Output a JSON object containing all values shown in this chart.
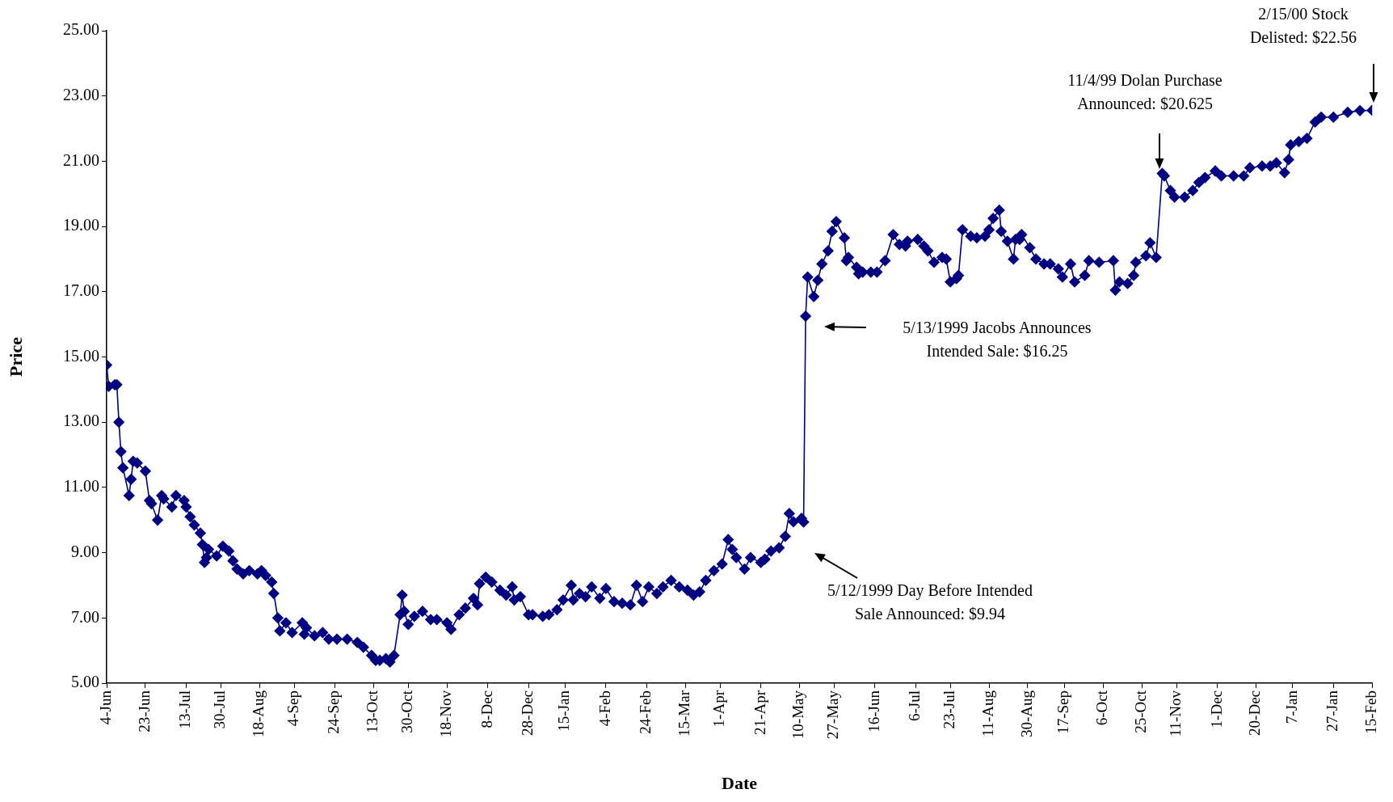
{
  "chart_data": {
    "type": "line",
    "xlabel": "Date",
    "ylabel": "Price",
    "marker": "diamond",
    "xlim": [
      "1998-06-04",
      "2000-02-15"
    ],
    "ylim": [
      5,
      25
    ],
    "yticks": [
      {
        "value": 5,
        "label": "5.00"
      },
      {
        "value": 7,
        "label": "7.00"
      },
      {
        "value": 9,
        "label": "9.00"
      },
      {
        "value": 11,
        "label": "11.00"
      },
      {
        "value": 13,
        "label": "13.00"
      },
      {
        "value": 15,
        "label": "15.00"
      },
      {
        "value": 17,
        "label": "17.00"
      },
      {
        "value": 19,
        "label": "19.00"
      },
      {
        "value": 21,
        "label": "21.00"
      },
      {
        "value": 23,
        "label": "23.00"
      },
      {
        "value": 25,
        "label": "25.00"
      }
    ],
    "xticks": [
      {
        "value": "1998-06-04",
        "label": "4-Jun"
      },
      {
        "value": "1998-06-23",
        "label": "23-Jun"
      },
      {
        "value": "1998-07-13",
        "label": "13-Jul"
      },
      {
        "value": "1998-07-30",
        "label": "30-Jul"
      },
      {
        "value": "1998-08-18",
        "label": "18-Aug"
      },
      {
        "value": "1998-09-04",
        "label": "4-Sep"
      },
      {
        "value": "1998-09-24",
        "label": "24-Sep"
      },
      {
        "value": "1998-10-13",
        "label": "13-Oct"
      },
      {
        "value": "1998-10-30",
        "label": "30-Oct"
      },
      {
        "value": "1998-11-18",
        "label": "18-Nov"
      },
      {
        "value": "1998-12-08",
        "label": "8-Dec"
      },
      {
        "value": "1998-12-28",
        "label": "28-Dec"
      },
      {
        "value": "1999-01-15",
        "label": "15-Jan"
      },
      {
        "value": "1999-02-04",
        "label": "4-Feb"
      },
      {
        "value": "1999-02-24",
        "label": "24-Feb"
      },
      {
        "value": "1999-03-15",
        "label": "15-Mar"
      },
      {
        "value": "1999-04-01",
        "label": "1-Apr"
      },
      {
        "value": "1999-04-21",
        "label": "21-Apr"
      },
      {
        "value": "1999-05-10",
        "label": "10-May"
      },
      {
        "value": "1999-05-27",
        "label": "27-May"
      },
      {
        "value": "1999-06-16",
        "label": "16-Jun"
      },
      {
        "value": "1999-07-06",
        "label": "6-Jul"
      },
      {
        "value": "1999-07-23",
        "label": "23-Jul"
      },
      {
        "value": "1999-08-11",
        "label": "11-Aug"
      },
      {
        "value": "1999-08-30",
        "label": "30-Aug"
      },
      {
        "value": "1999-09-17",
        "label": "17-Sep"
      },
      {
        "value": "1999-10-06",
        "label": "6-Oct"
      },
      {
        "value": "1999-10-25",
        "label": "25-Oct"
      },
      {
        "value": "1999-11-11",
        "label": "11-Nov"
      },
      {
        "value": "1999-12-01",
        "label": "1-Dec"
      },
      {
        "value": "1999-12-20",
        "label": "20-Dec"
      },
      {
        "value": "2000-01-07",
        "label": "7-Jan"
      },
      {
        "value": "2000-01-27",
        "label": "27-Jan"
      },
      {
        "value": "2000-02-15",
        "label": "15-Feb"
      }
    ],
    "x": [
      "1998-06-04",
      "1998-06-05",
      "1998-06-08",
      "1998-06-09",
      "1998-06-10",
      "1998-06-11",
      "1998-06-12",
      "1998-06-15",
      "1998-06-16",
      "1998-06-17",
      "1998-06-19",
      "1998-06-23",
      "1998-06-25",
      "1998-06-26",
      "1998-06-29",
      "1998-07-01",
      "1998-07-02",
      "1998-07-06",
      "1998-07-08",
      "1998-07-12",
      "1998-07-13",
      "1998-07-15",
      "1998-07-17",
      "1998-07-20",
      "1998-07-21",
      "1998-07-22",
      "1998-07-23",
      "1998-07-24",
      "1998-07-28",
      "1998-07-31",
      "1998-08-03",
      "1998-08-05",
      "1998-08-07",
      "1998-08-10",
      "1998-08-13",
      "1998-08-17",
      "1998-08-19",
      "1998-08-21",
      "1998-08-24",
      "1998-08-25",
      "1998-08-27",
      "1998-08-28",
      "1998-08-31",
      "1998-09-03",
      "1998-09-08",
      "1998-09-09",
      "1998-09-10",
      "1998-09-14",
      "1998-09-18",
      "1998-09-21",
      "1998-09-25",
      "1998-09-30",
      "1998-10-05",
      "1998-10-08",
      "1998-10-12",
      "1998-10-14",
      "1998-10-16",
      "1998-10-19",
      "1998-10-21",
      "1998-10-23",
      "1998-10-26",
      "1998-10-27",
      "1998-10-28",
      "1998-10-30",
      "1998-11-02",
      "1998-11-06",
      "1998-11-10",
      "1998-11-13",
      "1998-11-18",
      "1998-11-20",
      "1998-11-24",
      "1998-11-27",
      "1998-12-01",
      "1998-12-03",
      "1998-12-04",
      "1998-12-07",
      "1998-12-10",
      "1998-12-14",
      "1998-12-17",
      "1998-12-20",
      "1998-12-21",
      "1998-12-24",
      "1998-12-28",
      "1998-12-30",
      "1999-01-04",
      "1999-01-07",
      "1999-01-11",
      "1999-01-14",
      "1999-01-18",
      "1999-01-19",
      "1999-01-22",
      "1999-01-25",
      "1999-01-28",
      "1999-02-01",
      "1999-02-04",
      "1999-02-08",
      "1999-02-12",
      "1999-02-16",
      "1999-02-19",
      "1999-02-22",
      "1999-02-25",
      "1999-03-01",
      "1999-03-04",
      "1999-03-08",
      "1999-03-12",
      "1999-03-16",
      "1999-03-19",
      "1999-03-22",
      "1999-03-25",
      "1999-03-29",
      "1999-04-02",
      "1999-04-05",
      "1999-04-07",
      "1999-04-09",
      "1999-04-13",
      "1999-04-16",
      "1999-04-21",
      "1999-04-23",
      "1999-04-26",
      "1999-04-30",
      "1999-05-03",
      "1999-05-05",
      "1999-05-07",
      "1999-05-11",
      "1999-05-12",
      "1999-05-13",
      "1999-05-14",
      "1999-05-17",
      "1999-05-19",
      "1999-05-21",
      "1999-05-24",
      "1999-05-26",
      "1999-05-28",
      "1999-06-01",
      "1999-06-02",
      "1999-06-03",
      "1999-06-07",
      "1999-06-08",
      "1999-06-10",
      "1999-06-14",
      "1999-06-17",
      "1999-06-21",
      "1999-06-25",
      "1999-06-28",
      "1999-07-01",
      "1999-07-02",
      "1999-07-07",
      "1999-07-10",
      "1999-07-12",
      "1999-07-15",
      "1999-07-19",
      "1999-07-21",
      "1999-07-23",
      "1999-07-26",
      "1999-07-27",
      "1999-07-29",
      "1999-08-02",
      "1999-08-05",
      "1999-08-09",
      "1999-08-11",
      "1999-08-13",
      "1999-08-16",
      "1999-08-17",
      "1999-08-20",
      "1999-08-23",
      "1999-08-24",
      "1999-08-26",
      "1999-08-27",
      "1999-08-31",
      "1999-09-03",
      "1999-09-07",
      "1999-09-10",
      "1999-09-14",
      "1999-09-16",
      "1999-09-20",
      "1999-09-22",
      "1999-09-27",
      "1999-09-29",
      "1999-10-04",
      "1999-10-11",
      "1999-10-12",
      "1999-10-14",
      "1999-10-18",
      "1999-10-21",
      "1999-10-22",
      "1999-10-27",
      "1999-10-29",
      "1999-11-01",
      "1999-11-04",
      "1999-11-05",
      "1999-11-08",
      "1999-11-10",
      "1999-11-15",
      "1999-11-19",
      "1999-11-22",
      "1999-11-25",
      "1999-11-30",
      "1999-12-03",
      "1999-12-09",
      "1999-12-14",
      "1999-12-17",
      "1999-12-23",
      "1999-12-27",
      "1999-12-30",
      "2000-01-03",
      "2000-01-05",
      "2000-01-06",
      "2000-01-10",
      "2000-01-14",
      "2000-01-18",
      "2000-01-21",
      "2000-01-27",
      "2000-02-03",
      "2000-02-09",
      "2000-02-15"
    ],
    "series": [
      {
        "color": "#000080",
        "values": [
          14.75,
          14.1,
          14.15,
          14.15,
          13.0,
          12.1,
          11.6,
          10.75,
          11.25,
          11.8,
          11.75,
          11.5,
          10.6,
          10.5,
          10.0,
          10.75,
          10.65,
          10.4,
          10.75,
          10.6,
          10.4,
          10.1,
          9.85,
          9.6,
          9.25,
          8.7,
          8.85,
          9.1,
          8.9,
          9.2,
          9.05,
          8.75,
          8.5,
          8.35,
          8.45,
          8.35,
          8.45,
          8.3,
          8.1,
          7.75,
          7.0,
          6.6,
          6.85,
          6.55,
          6.85,
          6.5,
          6.7,
          6.45,
          6.55,
          6.35,
          6.35,
          6.35,
          6.25,
          6.1,
          5.85,
          5.7,
          5.7,
          5.75,
          5.65,
          5.85,
          7.1,
          7.7,
          7.2,
          6.8,
          7.05,
          7.2,
          6.95,
          6.95,
          6.85,
          6.65,
          7.1,
          7.3,
          7.6,
          7.4,
          8.05,
          8.25,
          8.1,
          7.85,
          7.7,
          7.95,
          7.55,
          7.65,
          7.1,
          7.1,
          7.05,
          7.1,
          7.25,
          7.55,
          8.0,
          7.55,
          7.75,
          7.65,
          7.95,
          7.6,
          7.9,
          7.5,
          7.45,
          7.4,
          8.0,
          7.5,
          7.95,
          7.75,
          7.95,
          8.15,
          7.95,
          7.85,
          7.7,
          7.8,
          8.15,
          8.45,
          8.65,
          9.4,
          9.1,
          8.85,
          8.5,
          8.85,
          8.7,
          8.8,
          9.05,
          9.15,
          9.5,
          10.2,
          9.95,
          10.05,
          9.94,
          16.25,
          17.45,
          16.85,
          17.35,
          17.85,
          18.25,
          18.85,
          19.15,
          18.65,
          17.95,
          18.05,
          17.75,
          17.55,
          17.6,
          17.6,
          17.6,
          17.95,
          18.75,
          18.45,
          18.4,
          18.55,
          18.6,
          18.4,
          18.25,
          17.9,
          18.05,
          18.0,
          17.3,
          17.4,
          17.5,
          18.9,
          18.7,
          18.65,
          18.7,
          18.9,
          19.25,
          19.5,
          18.85,
          18.55,
          18.0,
          18.6,
          18.6,
          18.75,
          18.35,
          18.0,
          17.85,
          17.85,
          17.7,
          17.45,
          17.85,
          17.3,
          17.5,
          17.95,
          17.9,
          17.95,
          17.05,
          17.3,
          17.25,
          17.5,
          17.9,
          18.1,
          18.5,
          18.05,
          20.625,
          20.55,
          20.1,
          19.9,
          19.9,
          20.1,
          20.35,
          20.5,
          20.7,
          20.55,
          20.55,
          20.55,
          20.8,
          20.85,
          20.85,
          20.95,
          20.65,
          21.05,
          21.5,
          21.6,
          21.7,
          22.2,
          22.35,
          22.35,
          22.5,
          22.55,
          22.56
        ]
      }
    ],
    "annotations": [
      "5/13/1999 Jacobs Announces\nIntended Sale: $16.25",
      "5/12/1999 Day Before Intended\nSale Announced: $9.94",
      "11/4/99 Dolan Purchase\nAnnounced: $20.625",
      "2/15/00 Stock\nDelisted: $22.56"
    ]
  }
}
